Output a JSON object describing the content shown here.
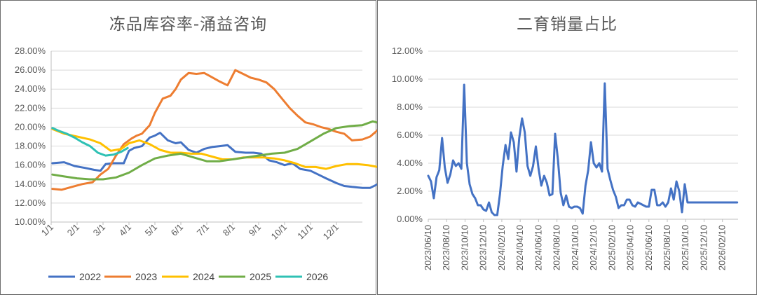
{
  "charts": {
    "left": {
      "title": "冻品库容率-涌益咨询",
      "chart_data": {
        "type": "line",
        "title": "冻品库容率-涌益咨询",
        "ylim": [
          10,
          28
        ],
        "y_ticks": [
          "10.00%",
          "12.00%",
          "14.00%",
          "16.00%",
          "18.00%",
          "20.00%",
          "22.00%",
          "24.00%",
          "26.00%",
          "28.00%"
        ],
        "y_tick_values": [
          10,
          12,
          14,
          16,
          18,
          20,
          22,
          24,
          26,
          28
        ],
        "categories": [
          "1/1",
          "2/1",
          "3/1",
          "4/1",
          "5/1",
          "6/1",
          "7/1",
          "8/1",
          "9/1",
          "10/1",
          "11/1",
          "12/1"
        ],
        "x_range": [
          0,
          12
        ],
        "series": [
          {
            "name": "2022",
            "color": "#4472C4",
            "x": [
              0.05,
              0.5,
              0.9,
              1.3,
              1.65,
              1.9,
              2.1,
              2.4,
              2.8,
              3.0,
              3.2,
              3.5,
              3.8,
              4.0,
              4.2,
              4.5,
              4.8,
              5.0,
              5.3,
              5.6,
              5.9,
              6.2,
              6.5,
              6.8,
              7.1,
              7.5,
              7.8,
              8.1,
              8.4,
              8.7,
              9.0,
              9.3,
              9.6,
              10.0,
              10.3,
              10.6,
              11.0,
              11.3,
              11.6,
              12.0,
              12.3,
              12.6,
              12.95
            ],
            "y": [
              16.2,
              16.3,
              15.9,
              15.7,
              15.5,
              15.4,
              16.1,
              16.2,
              16.2,
              17.5,
              17.8,
              18.0,
              18.9,
              19.1,
              19.4,
              18.6,
              18.3,
              18.4,
              17.6,
              17.3,
              17.7,
              17.9,
              18.0,
              18.1,
              17.4,
              17.3,
              17.3,
              17.2,
              16.5,
              16.3,
              16.0,
              16.2,
              15.6,
              15.4,
              15.0,
              14.6,
              14.1,
              13.8,
              13.7,
              13.6,
              13.6,
              14.0,
              13.9
            ]
          },
          {
            "name": "2023",
            "color": "#ED7D31",
            "x": [
              0.05,
              0.4,
              0.8,
              1.2,
              1.6,
              1.9,
              2.2,
              2.5,
              2.8,
              3.1,
              3.3,
              3.5,
              3.8,
              4.0,
              4.3,
              4.6,
              4.8,
              5.0,
              5.3,
              5.6,
              5.9,
              6.1,
              6.3,
              6.5,
              6.8,
              7.1,
              7.4,
              7.7,
              8.0,
              8.3,
              8.6,
              8.9,
              9.2,
              9.5,
              9.8,
              10.1,
              10.4,
              10.7,
              11.0,
              11.3,
              11.6,
              12.0,
              12.3,
              12.6,
              12.95
            ],
            "y": [
              13.5,
              13.4,
              13.7,
              14.0,
              14.2,
              15.0,
              15.6,
              17.0,
              18.2,
              18.8,
              19.1,
              19.3,
              20.2,
              21.5,
              23.0,
              23.3,
              24.0,
              25.0,
              25.7,
              25.6,
              25.7,
              25.4,
              25.1,
              24.8,
              24.4,
              26.0,
              25.6,
              25.2,
              25.0,
              24.7,
              24.0,
              23.0,
              22.0,
              21.2,
              20.5,
              20.3,
              20.0,
              19.8,
              19.5,
              19.3,
              18.6,
              18.7,
              19.0,
              19.7,
              20.5
            ]
          },
          {
            "name": "2024",
            "color": "#FFC000",
            "x": [
              0.05,
              0.5,
              1.0,
              1.5,
              1.9,
              2.3,
              2.7,
              3.0,
              3.4,
              3.8,
              4.2,
              4.6,
              5.0,
              5.4,
              5.8,
              6.2,
              6.6,
              7.0,
              7.4,
              7.8,
              8.2,
              8.6,
              9.0,
              9.4,
              9.8,
              10.2,
              10.6,
              11.0,
              11.4,
              11.8,
              12.2,
              12.6,
              12.95
            ],
            "y": [
              19.8,
              19.3,
              19.0,
              18.7,
              18.3,
              17.5,
              17.7,
              18.3,
              18.6,
              18.2,
              17.6,
              17.3,
              17.3,
              17.2,
              17.2,
              16.9,
              16.6,
              16.6,
              16.8,
              16.8,
              16.8,
              16.7,
              16.5,
              16.2,
              15.8,
              15.8,
              15.6,
              15.9,
              16.1,
              16.1,
              16.0,
              15.8,
              15.2
            ]
          },
          {
            "name": "2025",
            "color": "#70AD47",
            "x": [
              0.05,
              0.5,
              1.0,
              1.5,
              2.0,
              2.5,
              3.0,
              3.5,
              4.0,
              4.5,
              5.0,
              5.5,
              6.0,
              6.5,
              7.0,
              7.5,
              8.0,
              8.5,
              9.0,
              9.5,
              10.0,
              10.5,
              11.0,
              11.5,
              12.0,
              12.4,
              12.7,
              12.95
            ],
            "y": [
              15.0,
              14.8,
              14.6,
              14.5,
              14.5,
              14.7,
              15.2,
              16.0,
              16.7,
              17.0,
              17.2,
              16.8,
              16.4,
              16.4,
              16.6,
              16.8,
              17.0,
              17.2,
              17.3,
              17.7,
              18.5,
              19.3,
              19.9,
              20.1,
              20.2,
              20.6,
              20.4,
              20.1
            ]
          },
          {
            "name": "2026",
            "color": "#2FC1B4",
            "x": [
              0.05,
              0.3,
              0.6,
              0.9,
              1.2,
              1.5,
              1.8,
              2.1,
              2.4,
              2.7,
              2.95
            ],
            "y": [
              19.9,
              19.6,
              19.3,
              18.9,
              18.4,
              18.0,
              17.3,
              17.0,
              17.1,
              17.4,
              17.8
            ]
          }
        ]
      }
    },
    "right": {
      "title": "二育销量占比",
      "chart_data": {
        "type": "line",
        "title": "二育销量占比",
        "ylim": [
          0,
          12
        ],
        "y_ticks": [
          "0.00%",
          "2.00%",
          "4.00%",
          "6.00%",
          "8.00%",
          "10.00%",
          "12.00%"
        ],
        "y_tick_values": [
          0,
          2,
          4,
          6,
          8,
          10,
          12
        ],
        "x_ticks": [
          "2023/06/10",
          "2023/08/10",
          "2023/10/10",
          "2023/12/10",
          "2024/02/10",
          "2024/04/10",
          "2024/06/10",
          "2024/08/10",
          "2024/10/10",
          "2024/12/10",
          "2025/02/10",
          "2025/04/10",
          "2025/06/10",
          "2025/08/10",
          "2025/10/10",
          "2025/12/10",
          "2026/02/10"
        ],
        "x_range": [
          0,
          16.85
        ],
        "series": [
          {
            "name": "二育销量占比",
            "color": "#4472C4",
            "x": [
              0,
              0.15,
              0.3,
              0.45,
              0.6,
              0.75,
              0.9,
              1.05,
              1.2,
              1.35,
              1.5,
              1.65,
              1.8,
              1.95,
              2.1,
              2.25,
              2.4,
              2.55,
              2.7,
              2.85,
              3.0,
              3.15,
              3.3,
              3.45,
              3.6,
              3.75,
              3.9,
              4.05,
              4.2,
              4.35,
              4.5,
              4.65,
              4.8,
              4.95,
              5.1,
              5.25,
              5.4,
              5.55,
              5.7,
              5.85,
              6.0,
              6.15,
              6.3,
              6.45,
              6.6,
              6.75,
              6.9,
              7.05,
              7.2,
              7.35,
              7.5,
              7.65,
              7.8,
              7.95,
              8.1,
              8.25,
              8.4,
              8.55,
              8.7,
              8.85,
              9.0,
              9.15,
              9.3,
              9.45,
              9.6,
              9.75,
              9.9,
              10.05,
              10.2,
              10.35,
              10.5,
              10.65,
              10.8,
              10.95,
              11.1,
              11.25,
              11.4,
              11.55,
              11.7,
              11.85,
              12.0,
              12.15,
              12.3,
              12.45,
              12.6,
              12.75,
              12.9,
              13.05,
              13.2,
              13.35,
              13.5,
              13.65,
              13.8,
              13.95,
              14.1,
              14.25,
              14.4,
              14.55,
              14.7,
              14.85,
              15.0,
              15.15,
              15.3,
              15.45,
              15.6,
              15.75,
              15.9,
              16.05,
              16.2,
              16.35,
              16.5,
              16.65,
              16.8
            ],
            "y": [
              3.1,
              2.7,
              1.5,
              3.0,
              3.5,
              5.8,
              3.7,
              2.6,
              3.2,
              4.2,
              3.8,
              4.0,
              3.6,
              9.6,
              4.0,
              2.5,
              1.8,
              1.5,
              1.0,
              1.0,
              0.7,
              0.6,
              1.2,
              0.5,
              0.3,
              0.3,
              1.8,
              3.8,
              5.3,
              4.3,
              6.2,
              5.5,
              3.4,
              5.8,
              7.2,
              6.2,
              3.8,
              3.1,
              3.8,
              5.2,
              3.6,
              2.4,
              3.1,
              2.6,
              1.7,
              1.8,
              6.1,
              4.3,
              1.9,
              1.0,
              1.7,
              0.9,
              0.8,
              0.9,
              0.9,
              0.8,
              0.4,
              2.4,
              3.5,
              5.5,
              4.0,
              3.7,
              4.0,
              3.4,
              9.7,
              3.6,
              2.8,
              2.1,
              1.6,
              0.8,
              1.0,
              1.0,
              1.4,
              1.4,
              1.0,
              0.9,
              1.2,
              1.1,
              1.0,
              0.9,
              0.9,
              2.1,
              2.1,
              1.0,
              1.0,
              1.2,
              0.9,
              1.2,
              2.2,
              1.4,
              2.7,
              2.0,
              0.5,
              2.5,
              1.2,
              1.2,
              1.2,
              1.2,
              1.2,
              1.2,
              1.2,
              1.2,
              1.2,
              1.2,
              1.2,
              1.2,
              1.2,
              1.2,
              1.2,
              1.2,
              1.2,
              1.2,
              1.2
            ]
          }
        ]
      }
    }
  }
}
